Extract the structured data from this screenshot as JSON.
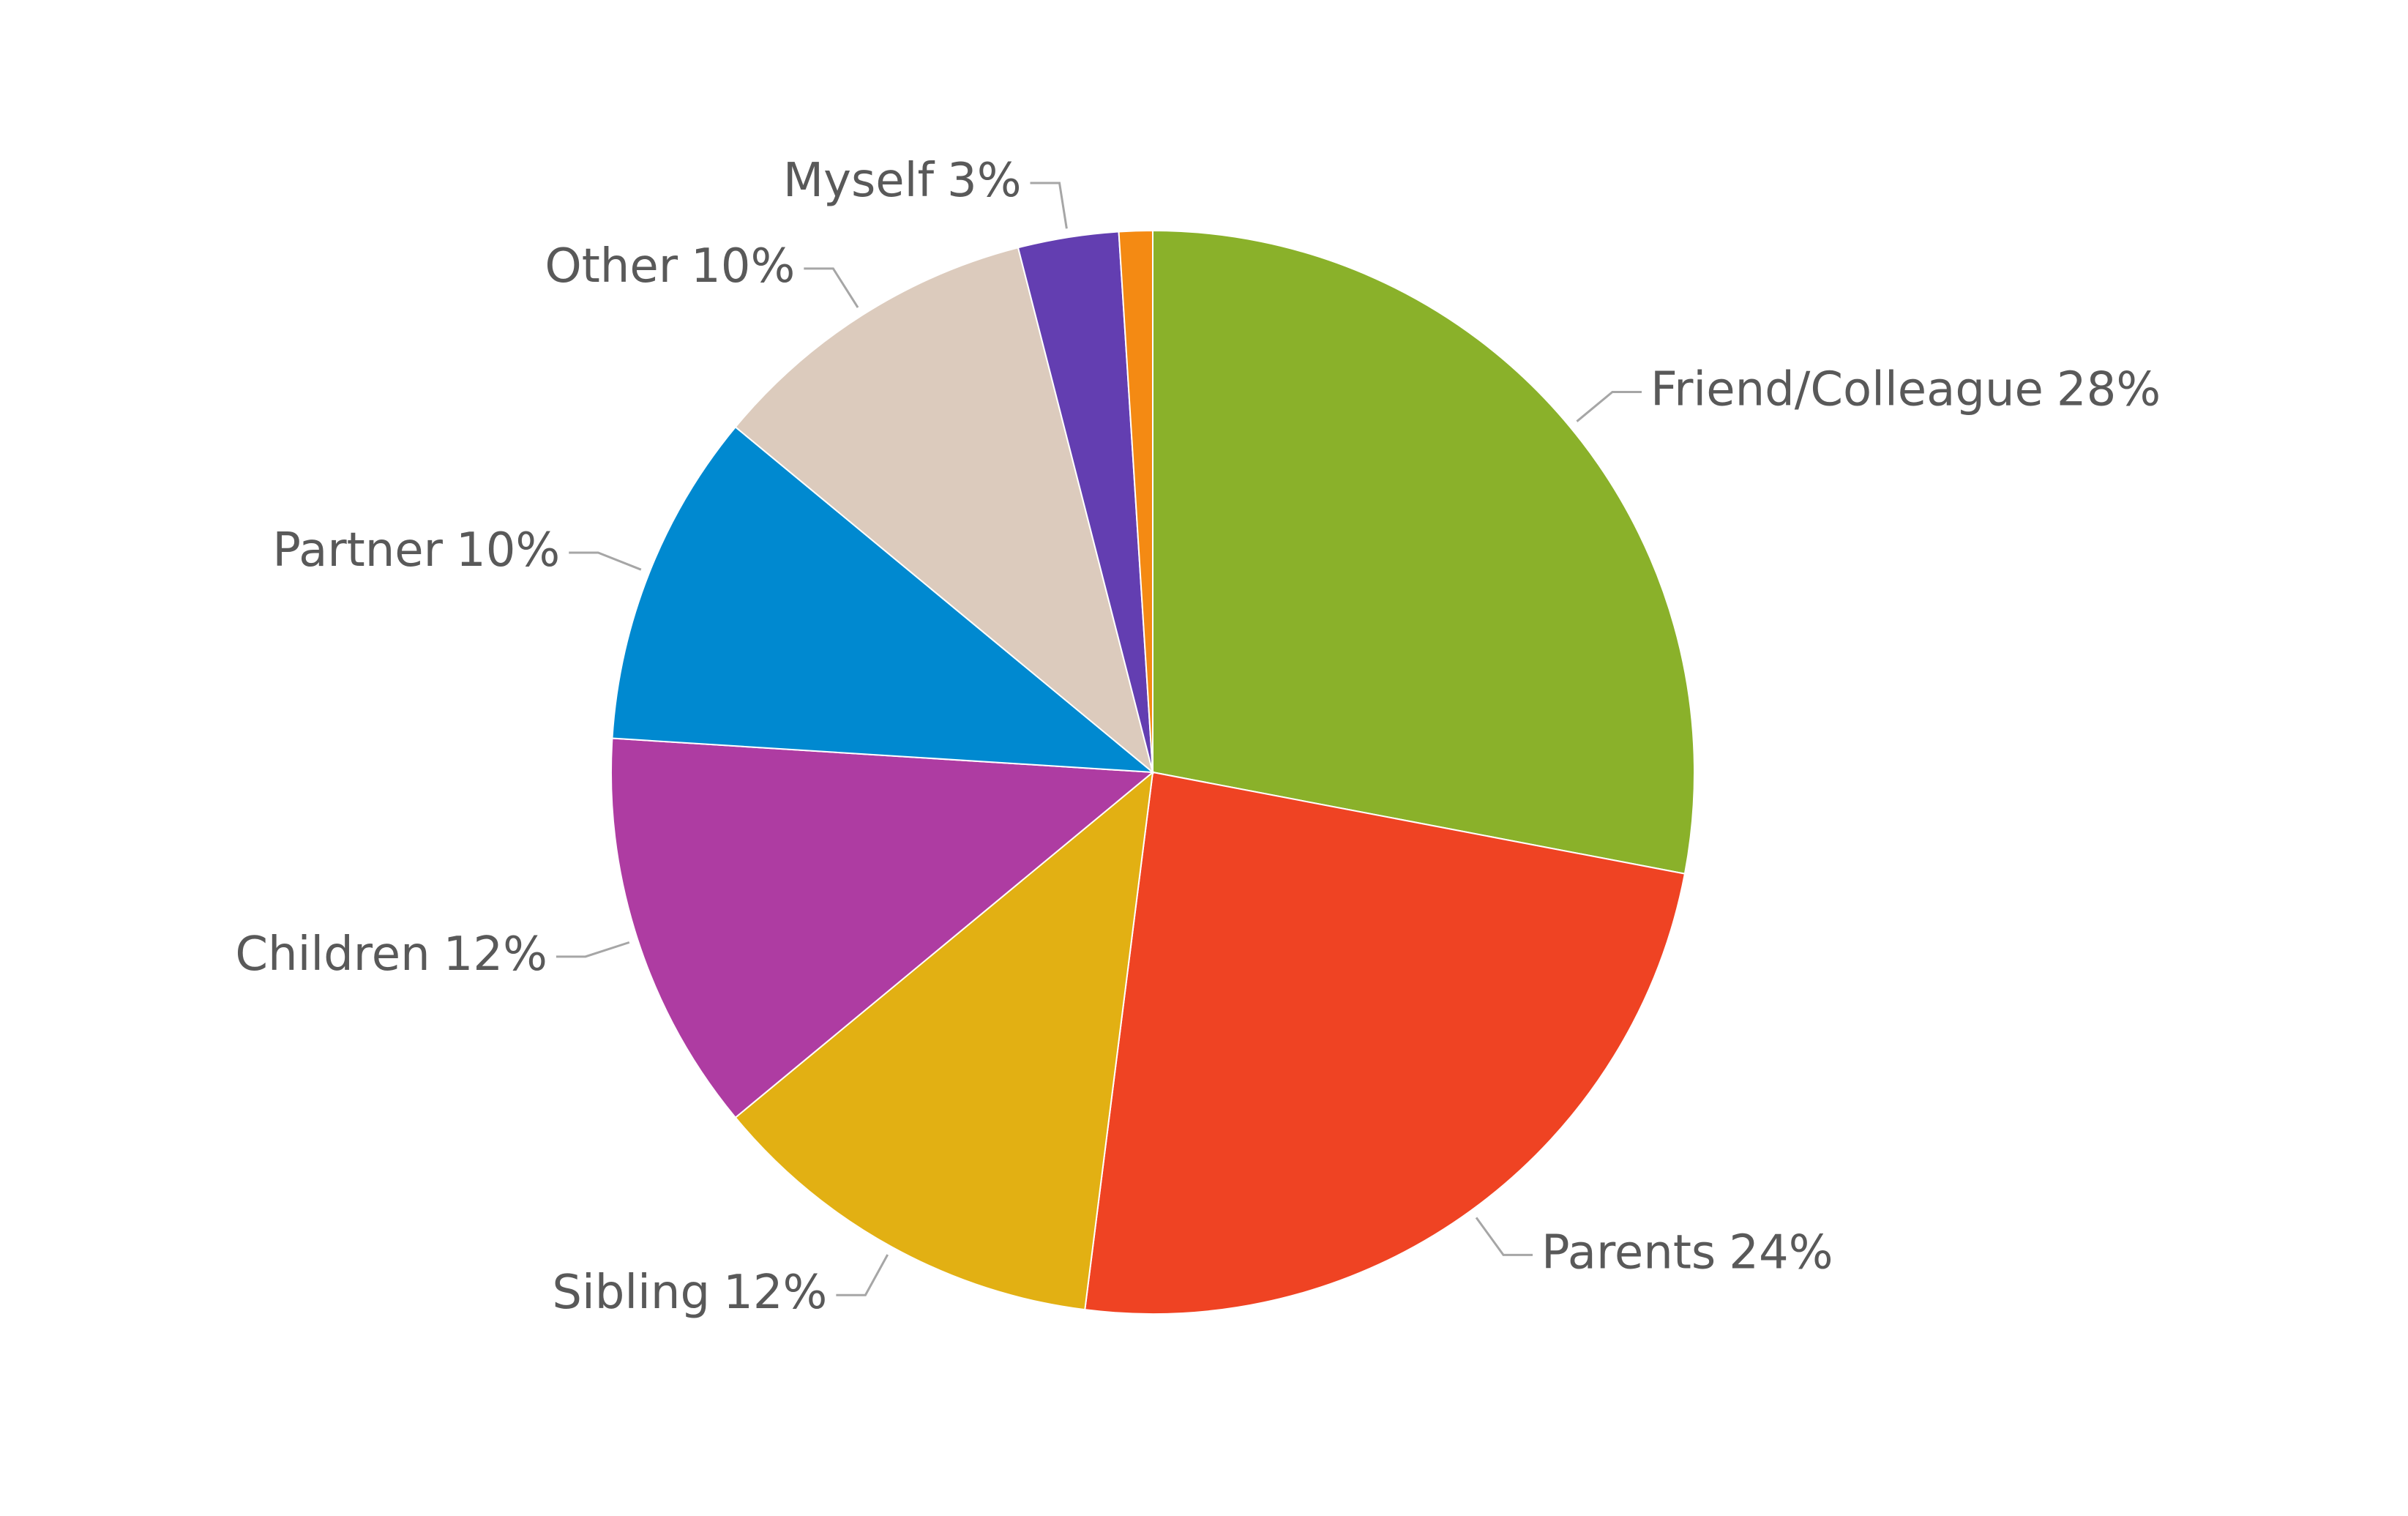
{
  "chart_data": {
    "type": "pie",
    "categories": [
      "Friend/Colleague",
      "Parents",
      "Sibling",
      "Children",
      "Partner",
      "Other",
      "Myself",
      null
    ],
    "values": [
      28,
      24,
      12,
      12,
      10,
      10,
      3,
      1
    ],
    "value_labels": [
      "28%",
      "24%",
      "12%",
      "12%",
      "10%",
      "10%",
      "3%",
      null
    ],
    "colors": [
      "#8ab12a",
      "#ef4323",
      "#e2b013",
      "#ae3ca2",
      "#0089d0",
      "#dccbbd",
      "#633eb1",
      "#f48a13"
    ],
    "start_angle": 0,
    "direction": "clockwise"
  }
}
